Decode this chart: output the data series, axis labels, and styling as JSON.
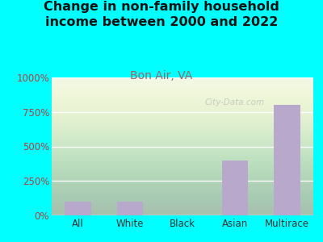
{
  "title": "Change in non-family household\nincome between 2000 and 2022",
  "subtitle": "Bon Air, VA",
  "categories": [
    "All",
    "White",
    "Black",
    "Asian",
    "Multirace"
  ],
  "values": [
    100,
    100,
    2,
    400,
    800
  ],
  "bar_color": "#b8a8cc",
  "background_outer": "#00FFFF",
  "background_inner": "#eef5e8",
  "title_color": "#111111",
  "subtitle_color": "#996666",
  "tick_color": "#aa4444",
  "ylabel_max": 1000,
  "yticks": [
    0,
    250,
    500,
    750,
    1000
  ],
  "watermark": "City-Data.com",
  "title_fontsize": 11.5,
  "subtitle_fontsize": 10
}
